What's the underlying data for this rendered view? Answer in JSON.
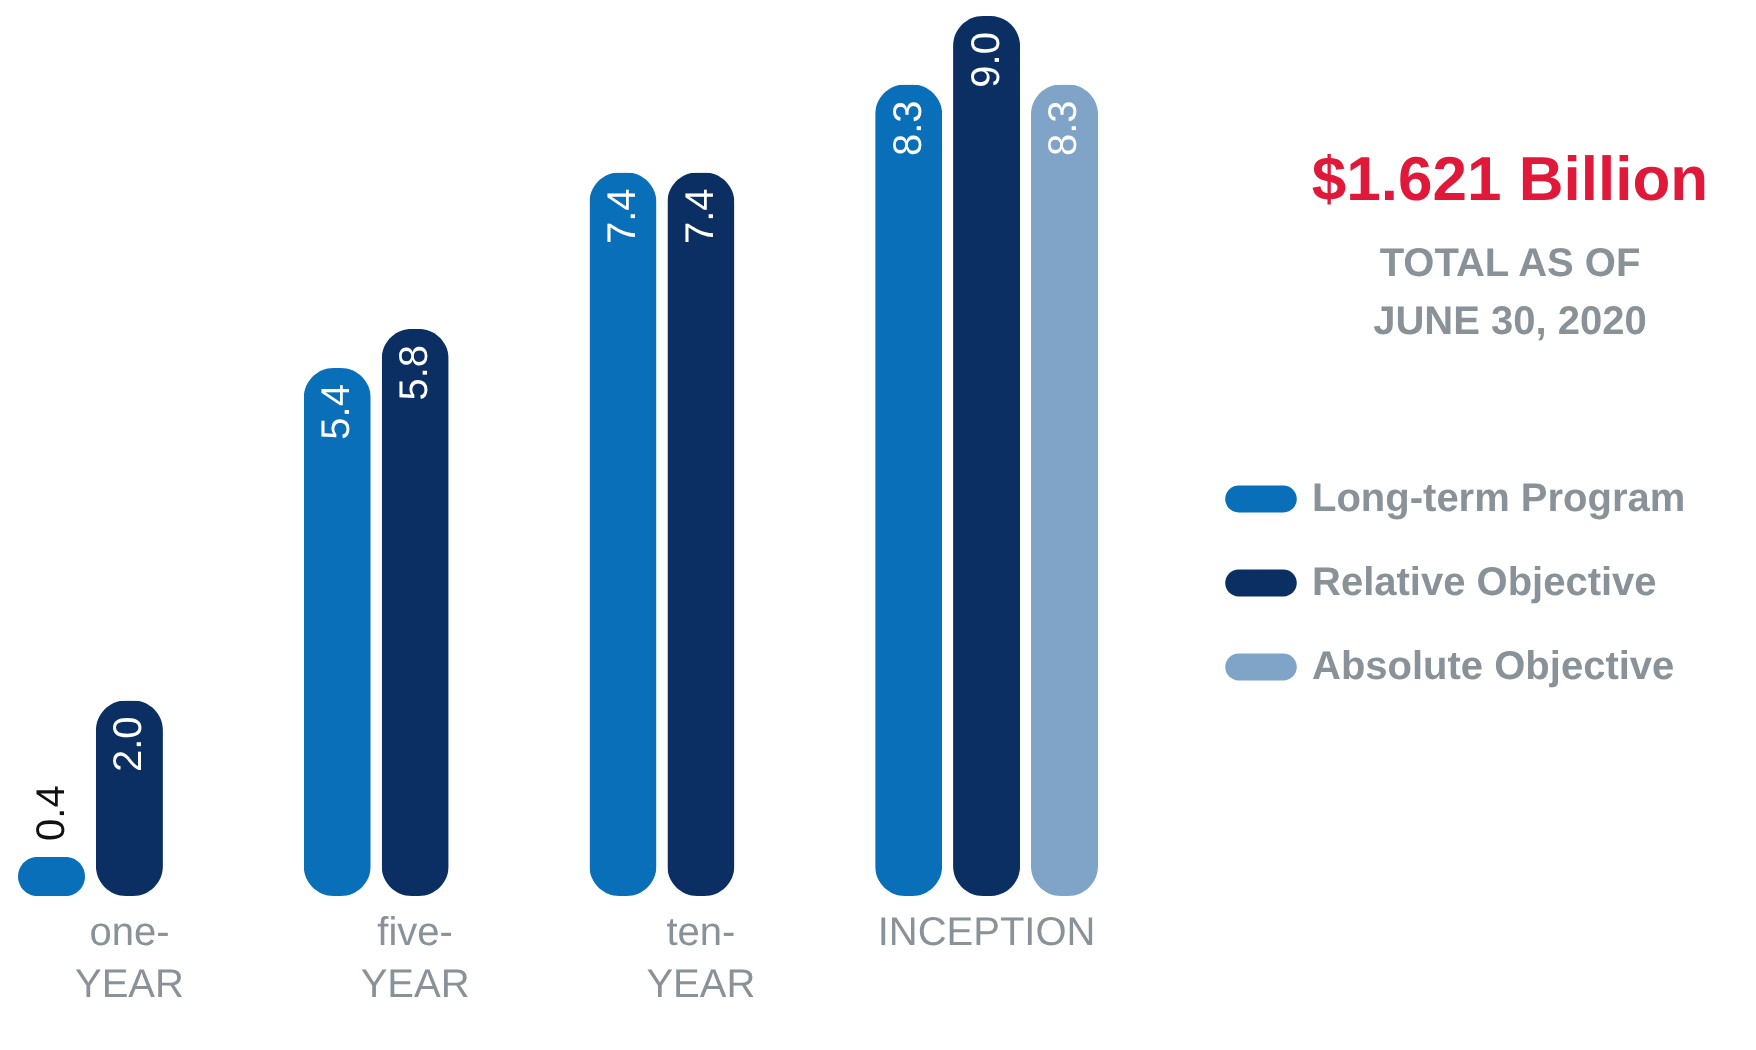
{
  "chart_data": {
    "type": "bar",
    "categories": [
      "one-\nYEAR",
      "five-\nYEAR",
      "ten-\nYEAR",
      "INCEPTION"
    ],
    "series": [
      {
        "name": "Long-term Program",
        "color": "#0a6fb9",
        "values": [
          0.4,
          5.4,
          7.4,
          8.3
        ],
        "value_labels": [
          "0.4",
          "5.4",
          "7.4",
          "8.3"
        ]
      },
      {
        "name": "Relative Objective",
        "color": "#0b2f62",
        "values": [
          2.0,
          5.8,
          7.4,
          9.0
        ],
        "value_labels": [
          "2.0",
          "5.8",
          "7.4",
          "9.0"
        ]
      },
      {
        "name": "Absolute Objective",
        "color": "#7fa4c8",
        "values": [
          null,
          null,
          null,
          8.3
        ],
        "value_labels": [
          null,
          null,
          null,
          "8.3"
        ]
      }
    ],
    "legend": "right",
    "grid": false,
    "annotations": [
      "$1.621 Billion",
      "TOTAL AS OF\nJUNE 30, 2020"
    ]
  }
}
